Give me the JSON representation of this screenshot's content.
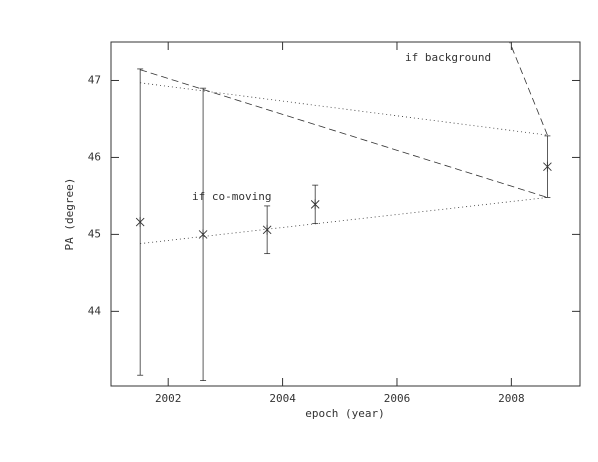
{
  "chart_data": {
    "type": "scatter",
    "xlabel": "epoch (year)",
    "ylabel": "PA (degree)",
    "xlim": [
      2001.0,
      2009.2
    ],
    "ylim": [
      43.03,
      47.5
    ],
    "xticks": [
      2002,
      2004,
      2006,
      2008
    ],
    "yticks": [
      44,
      45,
      46,
      47
    ],
    "color": "#333333",
    "x": [
      2001.51,
      2002.61,
      2003.73,
      2004.57,
      2008.63
    ],
    "values": [
      45.16,
      45.0,
      45.06,
      45.39,
      45.88
    ],
    "errors": [
      1.99,
      1.9,
      0.31,
      0.25,
      0.4
    ],
    "lines": [
      {
        "style": "dotted",
        "x": [
          2001.51,
          2008.63
        ],
        "values": [
          46.97,
          46.29
        ]
      },
      {
        "style": "dotted",
        "x": [
          2001.51,
          2008.63
        ],
        "values": [
          44.88,
          45.48
        ]
      },
      {
        "style": "dashed",
        "x": [
          2001.51,
          2008.63
        ],
        "values": [
          47.14,
          45.48
        ]
      },
      {
        "style": "dashed",
        "x": [
          2008.63,
          2007.97
        ],
        "values": [
          46.29,
          47.5
        ]
      }
    ],
    "annotations": [
      "if background",
      "if co-moving"
    ]
  }
}
